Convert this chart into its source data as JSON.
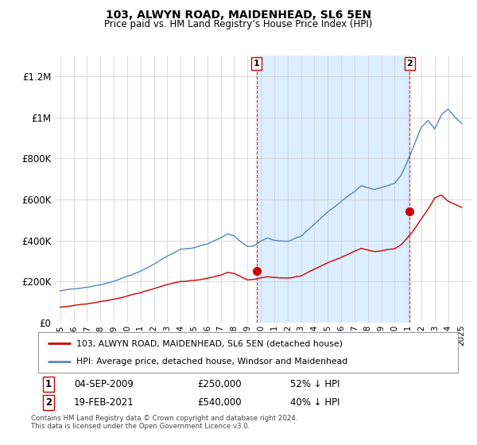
{
  "title": "103, ALWYN ROAD, MAIDENHEAD, SL6 5EN",
  "subtitle": "Price paid vs. HM Land Registry’s House Price Index (HPI)",
  "legend_line1": "103, ALWYN ROAD, MAIDENHEAD, SL6 5EN (detached house)",
  "legend_line2": "HPI: Average price, detached house, Windsor and Maidenhead",
  "annotation1_label": "1",
  "annotation1_date": "04-SEP-2009",
  "annotation1_price": "£250,000",
  "annotation1_pct": "52% ↓ HPI",
  "annotation2_label": "2",
  "annotation2_date": "19-FEB-2021",
  "annotation2_price": "£540,000",
  "annotation2_pct": "40% ↓ HPI",
  "footer": "Contains HM Land Registry data © Crown copyright and database right 2024.\nThis data is licensed under the Open Government Licence v3.0.",
  "red_color": "#cc0000",
  "blue_color": "#5588bb",
  "fill_color": "#ddeeff",
  "background_color": "#ffffff",
  "grid_color": "#cccccc",
  "ylim": [
    0,
    1300000
  ],
  "yticks": [
    0,
    200000,
    400000,
    600000,
    800000,
    1000000,
    1200000
  ],
  "ytick_labels": [
    "£0",
    "£200K",
    "£400K",
    "£600K",
    "£800K",
    "£1M",
    "£1.2M"
  ],
  "sale1_year": 2009.67,
  "sale1_value": 250000,
  "sale2_year": 2021.12,
  "sale2_value": 540000
}
